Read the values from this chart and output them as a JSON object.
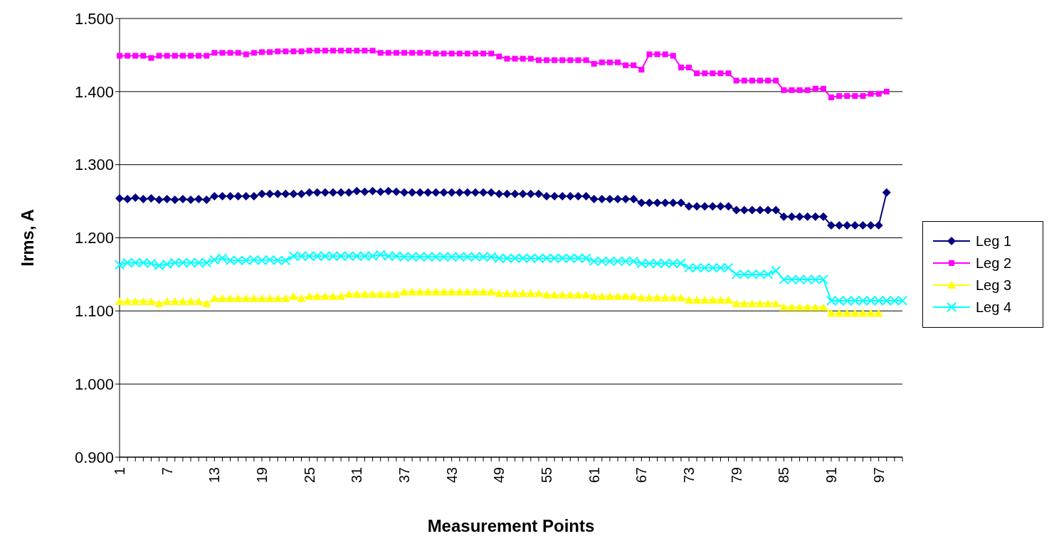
{
  "chart_data": {
    "type": "line",
    "xlabel": "Measurement Points",
    "ylabel": "Irms, A",
    "categories": [
      "1",
      null,
      null,
      null,
      null,
      null,
      "7",
      null,
      null,
      null,
      null,
      null,
      "13",
      null,
      null,
      null,
      null,
      null,
      "19",
      null,
      null,
      null,
      null,
      null,
      "25",
      null,
      null,
      null,
      null,
      null,
      "31",
      null,
      null,
      null,
      null,
      null,
      "37",
      null,
      null,
      null,
      null,
      null,
      "43",
      null,
      null,
      null,
      null,
      null,
      "49",
      null,
      null,
      null,
      null,
      null,
      "55",
      null,
      null,
      null,
      null,
      null,
      "61",
      null,
      null,
      null,
      null,
      null,
      "67",
      null,
      null,
      null,
      null,
      null,
      "73",
      null,
      null,
      null,
      null,
      null,
      "79",
      null,
      null,
      null,
      null,
      null,
      "85",
      null,
      null,
      null,
      null,
      null,
      "91",
      null,
      null,
      null,
      null,
      null,
      "97",
      null,
      null,
      null
    ],
    "ylim": [
      0.9,
      1.5
    ],
    "yticks": [
      {
        "value": 0.9,
        "label": "0.900"
      },
      {
        "value": 1.0,
        "label": "1.000"
      },
      {
        "value": 1.1,
        "label": "1.100"
      },
      {
        "value": 1.2,
        "label": "1.200"
      },
      {
        "value": 1.3,
        "label": "1.300"
      },
      {
        "value": 1.4,
        "label": "1.400"
      },
      {
        "value": 1.5,
        "label": "1.500"
      }
    ],
    "grid": "y",
    "legend": "right",
    "line_style": "solid",
    "series": [
      {
        "name": "Leg 1",
        "color": "#000080",
        "marker": "diamond",
        "values": [
          1.254,
          1.253,
          1.255,
          1.253,
          1.254,
          1.252,
          1.253,
          1.252,
          1.253,
          1.252,
          1.253,
          1.252,
          1.257,
          1.257,
          1.257,
          1.257,
          1.257,
          1.257,
          1.26,
          1.26,
          1.26,
          1.26,
          1.26,
          1.26,
          1.262,
          1.262,
          1.262,
          1.262,
          1.262,
          1.262,
          1.264,
          1.263,
          1.264,
          1.263,
          1.264,
          1.263,
          1.262,
          1.262,
          1.262,
          1.262,
          1.262,
          1.262,
          1.262,
          1.262,
          1.262,
          1.262,
          1.262,
          1.262,
          1.26,
          1.26,
          1.26,
          1.26,
          1.26,
          1.26,
          1.257,
          1.257,
          1.257,
          1.257,
          1.257,
          1.257,
          1.253,
          1.253,
          1.253,
          1.253,
          1.253,
          1.253,
          1.248,
          1.248,
          1.248,
          1.248,
          1.248,
          1.248,
          1.243,
          1.243,
          1.243,
          1.243,
          1.243,
          1.243,
          1.238,
          1.238,
          1.238,
          1.238,
          1.238,
          1.238,
          1.229,
          1.229,
          1.229,
          1.229,
          1.229,
          1.229,
          1.217,
          1.217,
          1.217,
          1.217,
          1.217,
          1.217,
          1.217,
          1.262,
          null,
          null
        ]
      },
      {
        "name": "Leg 2",
        "color": "#ff00ff",
        "marker": "square",
        "values": [
          1.449,
          1.449,
          1.449,
          1.449,
          1.446,
          1.449,
          1.449,
          1.449,
          1.449,
          1.449,
          1.449,
          1.449,
          1.453,
          1.453,
          1.453,
          1.453,
          1.451,
          1.453,
          1.454,
          1.454,
          1.455,
          1.455,
          1.455,
          1.455,
          1.456,
          1.456,
          1.456,
          1.456,
          1.456,
          1.456,
          1.456,
          1.456,
          1.456,
          1.453,
          1.453,
          1.453,
          1.453,
          1.453,
          1.453,
          1.453,
          1.452,
          1.452,
          1.452,
          1.452,
          1.452,
          1.452,
          1.452,
          1.452,
          1.448,
          1.445,
          1.445,
          1.445,
          1.445,
          1.443,
          1.443,
          1.443,
          1.443,
          1.443,
          1.443,
          1.443,
          1.438,
          1.44,
          1.44,
          1.44,
          1.436,
          1.436,
          1.43,
          1.451,
          1.451,
          1.451,
          1.449,
          1.433,
          1.433,
          1.425,
          1.425,
          1.425,
          1.425,
          1.425,
          1.415,
          1.415,
          1.415,
          1.415,
          1.415,
          1.415,
          1.402,
          1.402,
          1.402,
          1.402,
          1.404,
          1.404,
          1.392,
          1.394,
          1.394,
          1.394,
          1.394,
          1.397,
          1.397,
          1.4,
          null,
          null
        ]
      },
      {
        "name": "Leg 3",
        "color": "#ffff00",
        "marker": "triangle",
        "values": [
          1.113,
          1.113,
          1.113,
          1.113,
          1.113,
          1.11,
          1.113,
          1.113,
          1.113,
          1.113,
          1.113,
          1.11,
          1.117,
          1.117,
          1.117,
          1.117,
          1.117,
          1.117,
          1.117,
          1.117,
          1.117,
          1.117,
          1.12,
          1.117,
          1.12,
          1.12,
          1.12,
          1.12,
          1.12,
          1.123,
          1.123,
          1.123,
          1.123,
          1.123,
          1.123,
          1.123,
          1.126,
          1.126,
          1.126,
          1.126,
          1.126,
          1.126,
          1.126,
          1.126,
          1.126,
          1.126,
          1.126,
          1.126,
          1.124,
          1.124,
          1.124,
          1.124,
          1.124,
          1.124,
          1.122,
          1.122,
          1.122,
          1.122,
          1.122,
          1.122,
          1.12,
          1.12,
          1.12,
          1.12,
          1.12,
          1.12,
          1.118,
          1.118,
          1.118,
          1.118,
          1.118,
          1.118,
          1.115,
          1.115,
          1.115,
          1.115,
          1.115,
          1.115,
          1.11,
          1.11,
          1.11,
          1.11,
          1.11,
          1.11,
          1.105,
          1.105,
          1.105,
          1.105,
          1.105,
          1.105,
          1.097,
          1.097,
          1.097,
          1.097,
          1.097,
          1.097,
          1.097,
          null,
          null,
          null
        ]
      },
      {
        "name": "Leg 4",
        "color": "#00ffff",
        "marker": "cross",
        "values": [
          1.163,
          1.166,
          1.166,
          1.166,
          1.165,
          1.162,
          1.164,
          1.166,
          1.166,
          1.166,
          1.166,
          1.166,
          1.17,
          1.172,
          1.169,
          1.169,
          1.169,
          1.17,
          1.169,
          1.17,
          1.169,
          1.169,
          1.175,
          1.175,
          1.175,
          1.175,
          1.175,
          1.175,
          1.175,
          1.175,
          1.175,
          1.175,
          1.175,
          1.177,
          1.175,
          1.175,
          1.174,
          1.174,
          1.174,
          1.174,
          1.174,
          1.174,
          1.174,
          1.174,
          1.174,
          1.174,
          1.174,
          1.174,
          1.172,
          1.172,
          1.172,
          1.172,
          1.172,
          1.172,
          1.172,
          1.172,
          1.172,
          1.172,
          1.172,
          1.172,
          1.168,
          1.168,
          1.168,
          1.168,
          1.168,
          1.168,
          1.165,
          1.165,
          1.165,
          1.165,
          1.165,
          1.165,
          1.159,
          1.159,
          1.159,
          1.159,
          1.159,
          1.159,
          1.15,
          1.15,
          1.15,
          1.15,
          1.15,
          1.155,
          1.143,
          1.143,
          1.143,
          1.143,
          1.143,
          1.143,
          1.114,
          1.114,
          1.114,
          1.114,
          1.114,
          1.114,
          1.114,
          1.114,
          1.114,
          1.114
        ]
      }
    ]
  }
}
